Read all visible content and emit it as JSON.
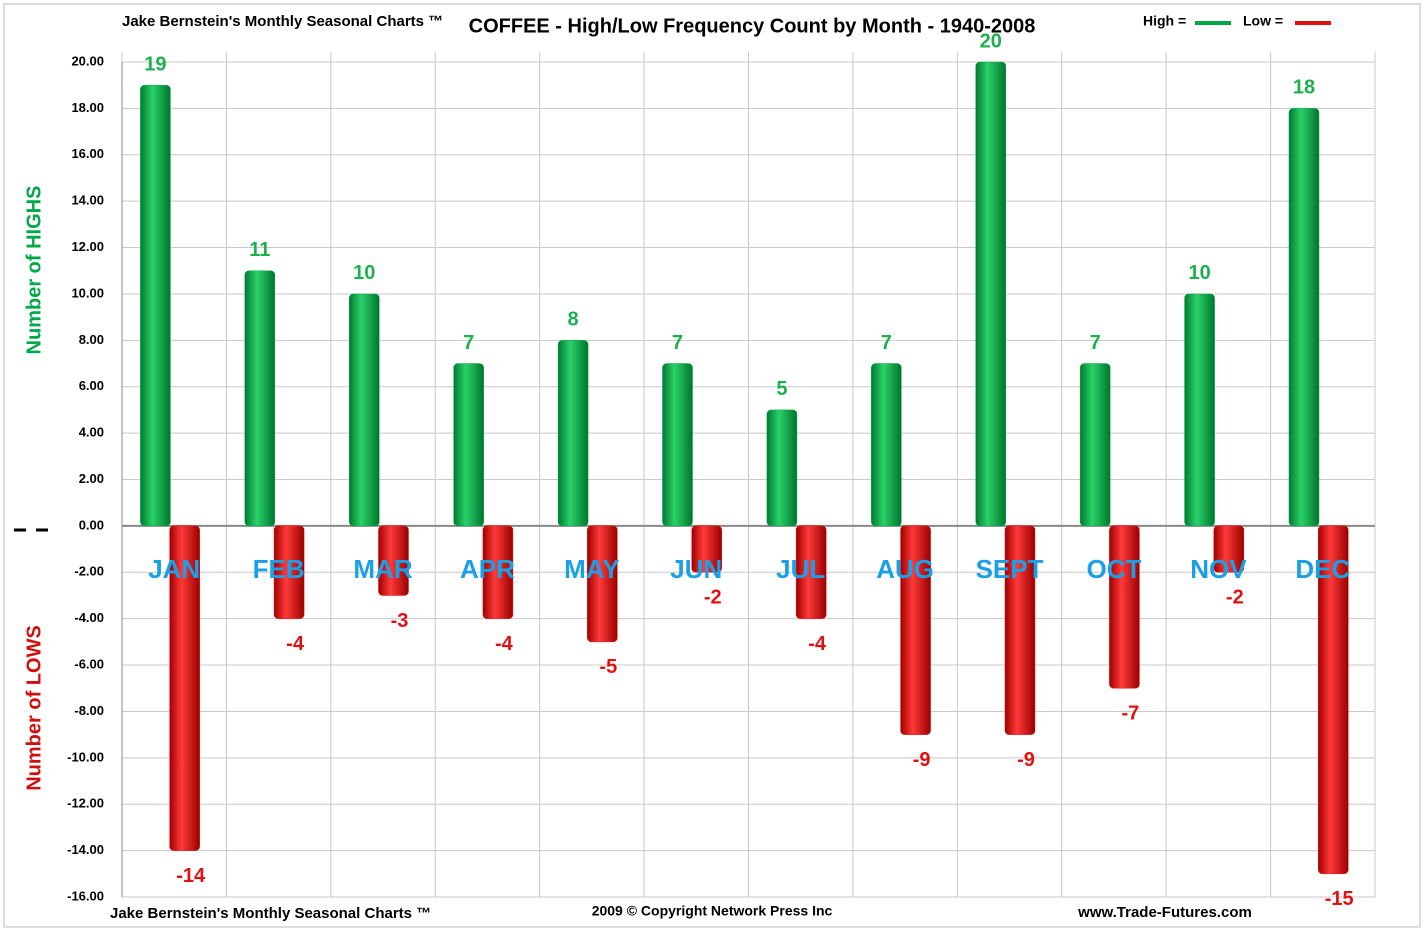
{
  "chart_data": {
    "type": "bar",
    "header": "Jake Bernstein's Monthly Seasonal Charts ™",
    "title": "COFFEE - High/Low Frequency Count by Month - 1940-2008",
    "footer_left": "Jake Bernstein's Monthly Seasonal Charts ™",
    "footer_center": "2009 © Copyright Network Press Inc",
    "footer_right": "www.Trade-Futures.com",
    "y_label_high": "Number of  HIGHS",
    "y_label_low": "Number of  LOWS",
    "categories": [
      "JAN",
      "FEB",
      "MAR",
      "APR",
      "MAY",
      "JUN",
      "JUL",
      "AUG",
      "SEPT",
      "OCT",
      "NOV",
      "DEC"
    ],
    "series": [
      {
        "name": "High =",
        "color": "#00a848",
        "values": [
          19,
          11,
          10,
          7,
          8,
          7,
          5,
          7,
          20,
          7,
          10,
          18
        ]
      },
      {
        "name": "Low =",
        "color": "#e41010",
        "values": [
          -14,
          -4,
          -3,
          -4,
          -5,
          -2,
          -4,
          -9,
          -9,
          -7,
          -2,
          -15
        ]
      }
    ],
    "ylim": [
      -16,
      20
    ],
    "yticks": [
      {
        "value": -16,
        "label": "-16.00"
      },
      {
        "value": -14,
        "label": "-14.00"
      },
      {
        "value": -12,
        "label": "-12.00"
      },
      {
        "value": -10,
        "label": "-10.00"
      },
      {
        "value": -8,
        "label": "-8.00"
      },
      {
        "value": -6,
        "label": "-6.00"
      },
      {
        "value": -4,
        "label": "-4.00"
      },
      {
        "value": -2,
        "label": "-2.00"
      },
      {
        "value": 0,
        "label": "0.00"
      },
      {
        "value": 2,
        "label": "2.00"
      },
      {
        "value": 4,
        "label": "4.00"
      },
      {
        "value": 6,
        "label": "6.00"
      },
      {
        "value": 8,
        "label": "8.00"
      },
      {
        "value": 10,
        "label": "10.00"
      },
      {
        "value": 12,
        "label": "12.00"
      },
      {
        "value": 14,
        "label": "14.00"
      },
      {
        "value": 16,
        "label": "16.00"
      },
      {
        "value": 18,
        "label": "18.00"
      },
      {
        "value": 20,
        "label": "20.00"
      }
    ],
    "grid": true,
    "category_color": "#1aa0e6"
  }
}
